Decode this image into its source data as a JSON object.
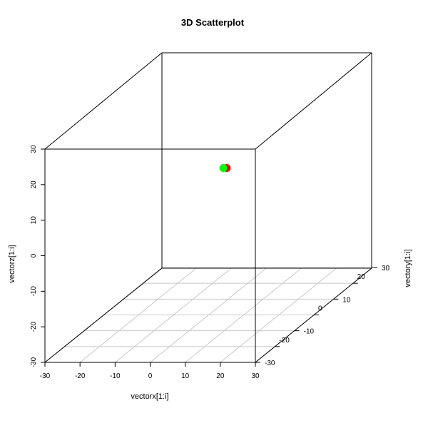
{
  "chart_data": {
    "type": "scatter",
    "title": "3D Scatterplot",
    "xlabel": "vectorx[1:i]",
    "ylabel": "vectory[1:i]",
    "zlabel": "vectorz[1:i]",
    "xlim": [
      -30,
      30
    ],
    "ylim": [
      -30,
      30
    ],
    "zlim": [
      -30,
      30
    ],
    "x_ticks": [
      "-30",
      "-20",
      "-10",
      "0",
      "10",
      "20",
      "30"
    ],
    "y_ticks": [
      "-30",
      "-20",
      "-10",
      "0",
      "10",
      "20",
      "30"
    ],
    "z_ticks": [
      "-30",
      "-20",
      "-10",
      "0",
      "10",
      "20",
      "30"
    ],
    "grid": "floor",
    "points": [
      {
        "x": 3.5,
        "y": 3,
        "z": 10,
        "color": "#ff0000"
      },
      {
        "x": 2.5,
        "y": 3,
        "z": 10,
        "color": "#00ff00"
      }
    ]
  }
}
